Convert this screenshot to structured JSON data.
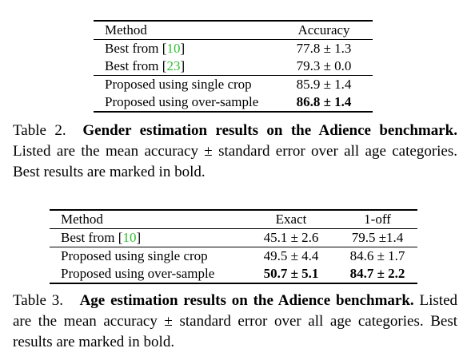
{
  "table2": {
    "headers": [
      "Method",
      "Accuracy"
    ],
    "rows": [
      {
        "method_prefix": "Best from [",
        "cite": "10",
        "method_suffix": "]",
        "accuracy": "77.8 ± 1.3"
      },
      {
        "method_prefix": "Best from [",
        "cite": "23",
        "method_suffix": "]",
        "accuracy": "79.3 ± 0.0"
      },
      {
        "method": "Proposed using single crop",
        "accuracy": "85.9 ± 1.4"
      },
      {
        "method": "Proposed using over-sample",
        "accuracy": "86.8 ± 1.4"
      }
    ],
    "caption": {
      "label": "Table 2.",
      "title": "Gender estimation results on the Adience benchmark.",
      "text": "Listed are the mean accuracy ± standard error over all age categories. Best results are marked in bold."
    }
  },
  "table3": {
    "headers": [
      "Method",
      "Exact",
      "1-off"
    ],
    "rows": [
      {
        "method_prefix": "Best from [",
        "cite": "10",
        "method_suffix": "]",
        "exact": "45.1 ± 2.6",
        "one_off": "79.5 ±1.4"
      },
      {
        "method": "Proposed using single crop",
        "exact": "49.5 ± 4.4",
        "one_off": "84.6 ± 1.7"
      },
      {
        "method": "Proposed using over-sample",
        "exact": "50.7 ± 5.1",
        "one_off": "84.7 ± 2.2"
      }
    ],
    "caption": {
      "label": "Table 3.",
      "title": "Age estimation results on the Adience benchmark.",
      "text": "Listed are the mean accuracy ± standard error over all age categories. Best results are marked in bold."
    }
  },
  "colors": {
    "citation": "#2fbf2f"
  }
}
